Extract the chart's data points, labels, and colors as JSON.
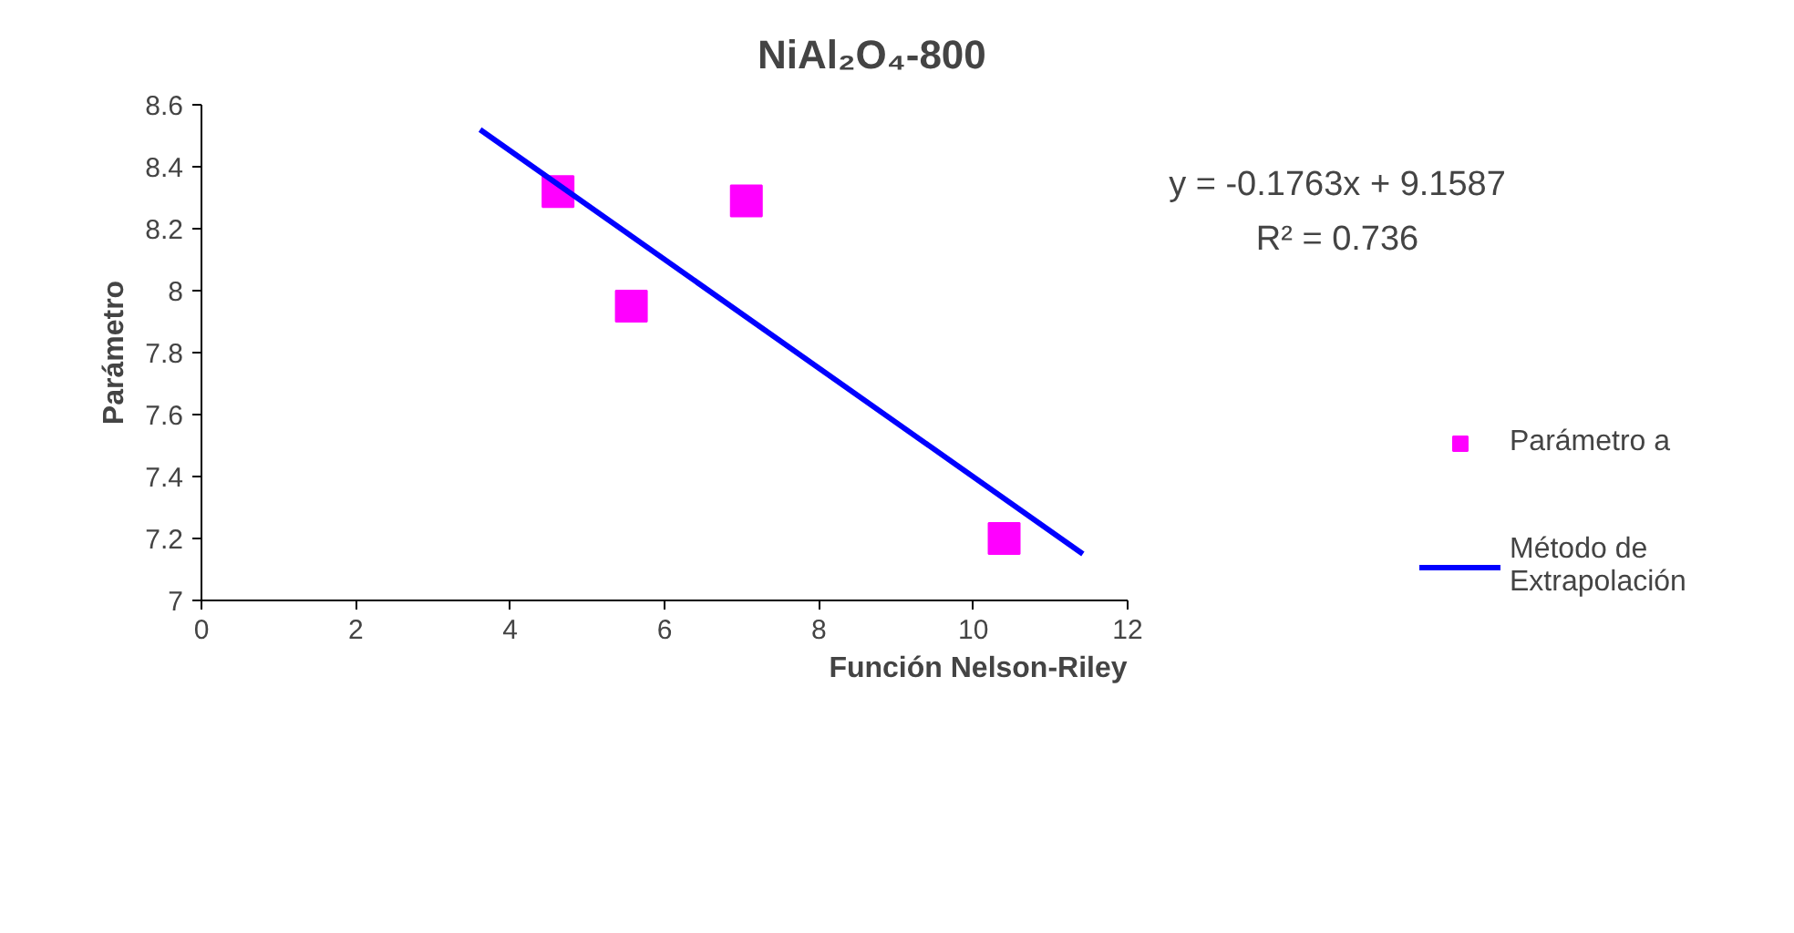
{
  "chart_data": {
    "type": "scatter",
    "title": "NiAl₂O₄-800",
    "xlabel": "Función Nelson-Riley",
    "ylabel": "Parámetro",
    "xlim": [
      0,
      12
    ],
    "xticks": [
      0,
      2,
      4,
      6,
      8,
      10,
      12
    ],
    "ylim": [
      7,
      8.6
    ],
    "yticks": [
      7,
      7.2,
      7.4,
      7.6,
      7.8,
      8,
      8.2,
      8.4,
      8.6
    ],
    "grid": false,
    "legend": "right",
    "series": [
      {
        "name": "Parámetro a",
        "marker": "square",
        "color": "#ff00ff",
        "x": [
          4.62,
          5.57,
          7.06,
          10.4
        ],
        "values": [
          8.32,
          7.95,
          8.29,
          7.2
        ]
      },
      {
        "name": "Método de Extrapolación",
        "type": "line",
        "color": "#0000ff",
        "x": [
          3.61,
          11.42
        ],
        "values": [
          8.52,
          7.15
        ]
      }
    ],
    "annotations": [
      "y = -0.1763x + 9.1587",
      "R² = 0.736"
    ]
  }
}
